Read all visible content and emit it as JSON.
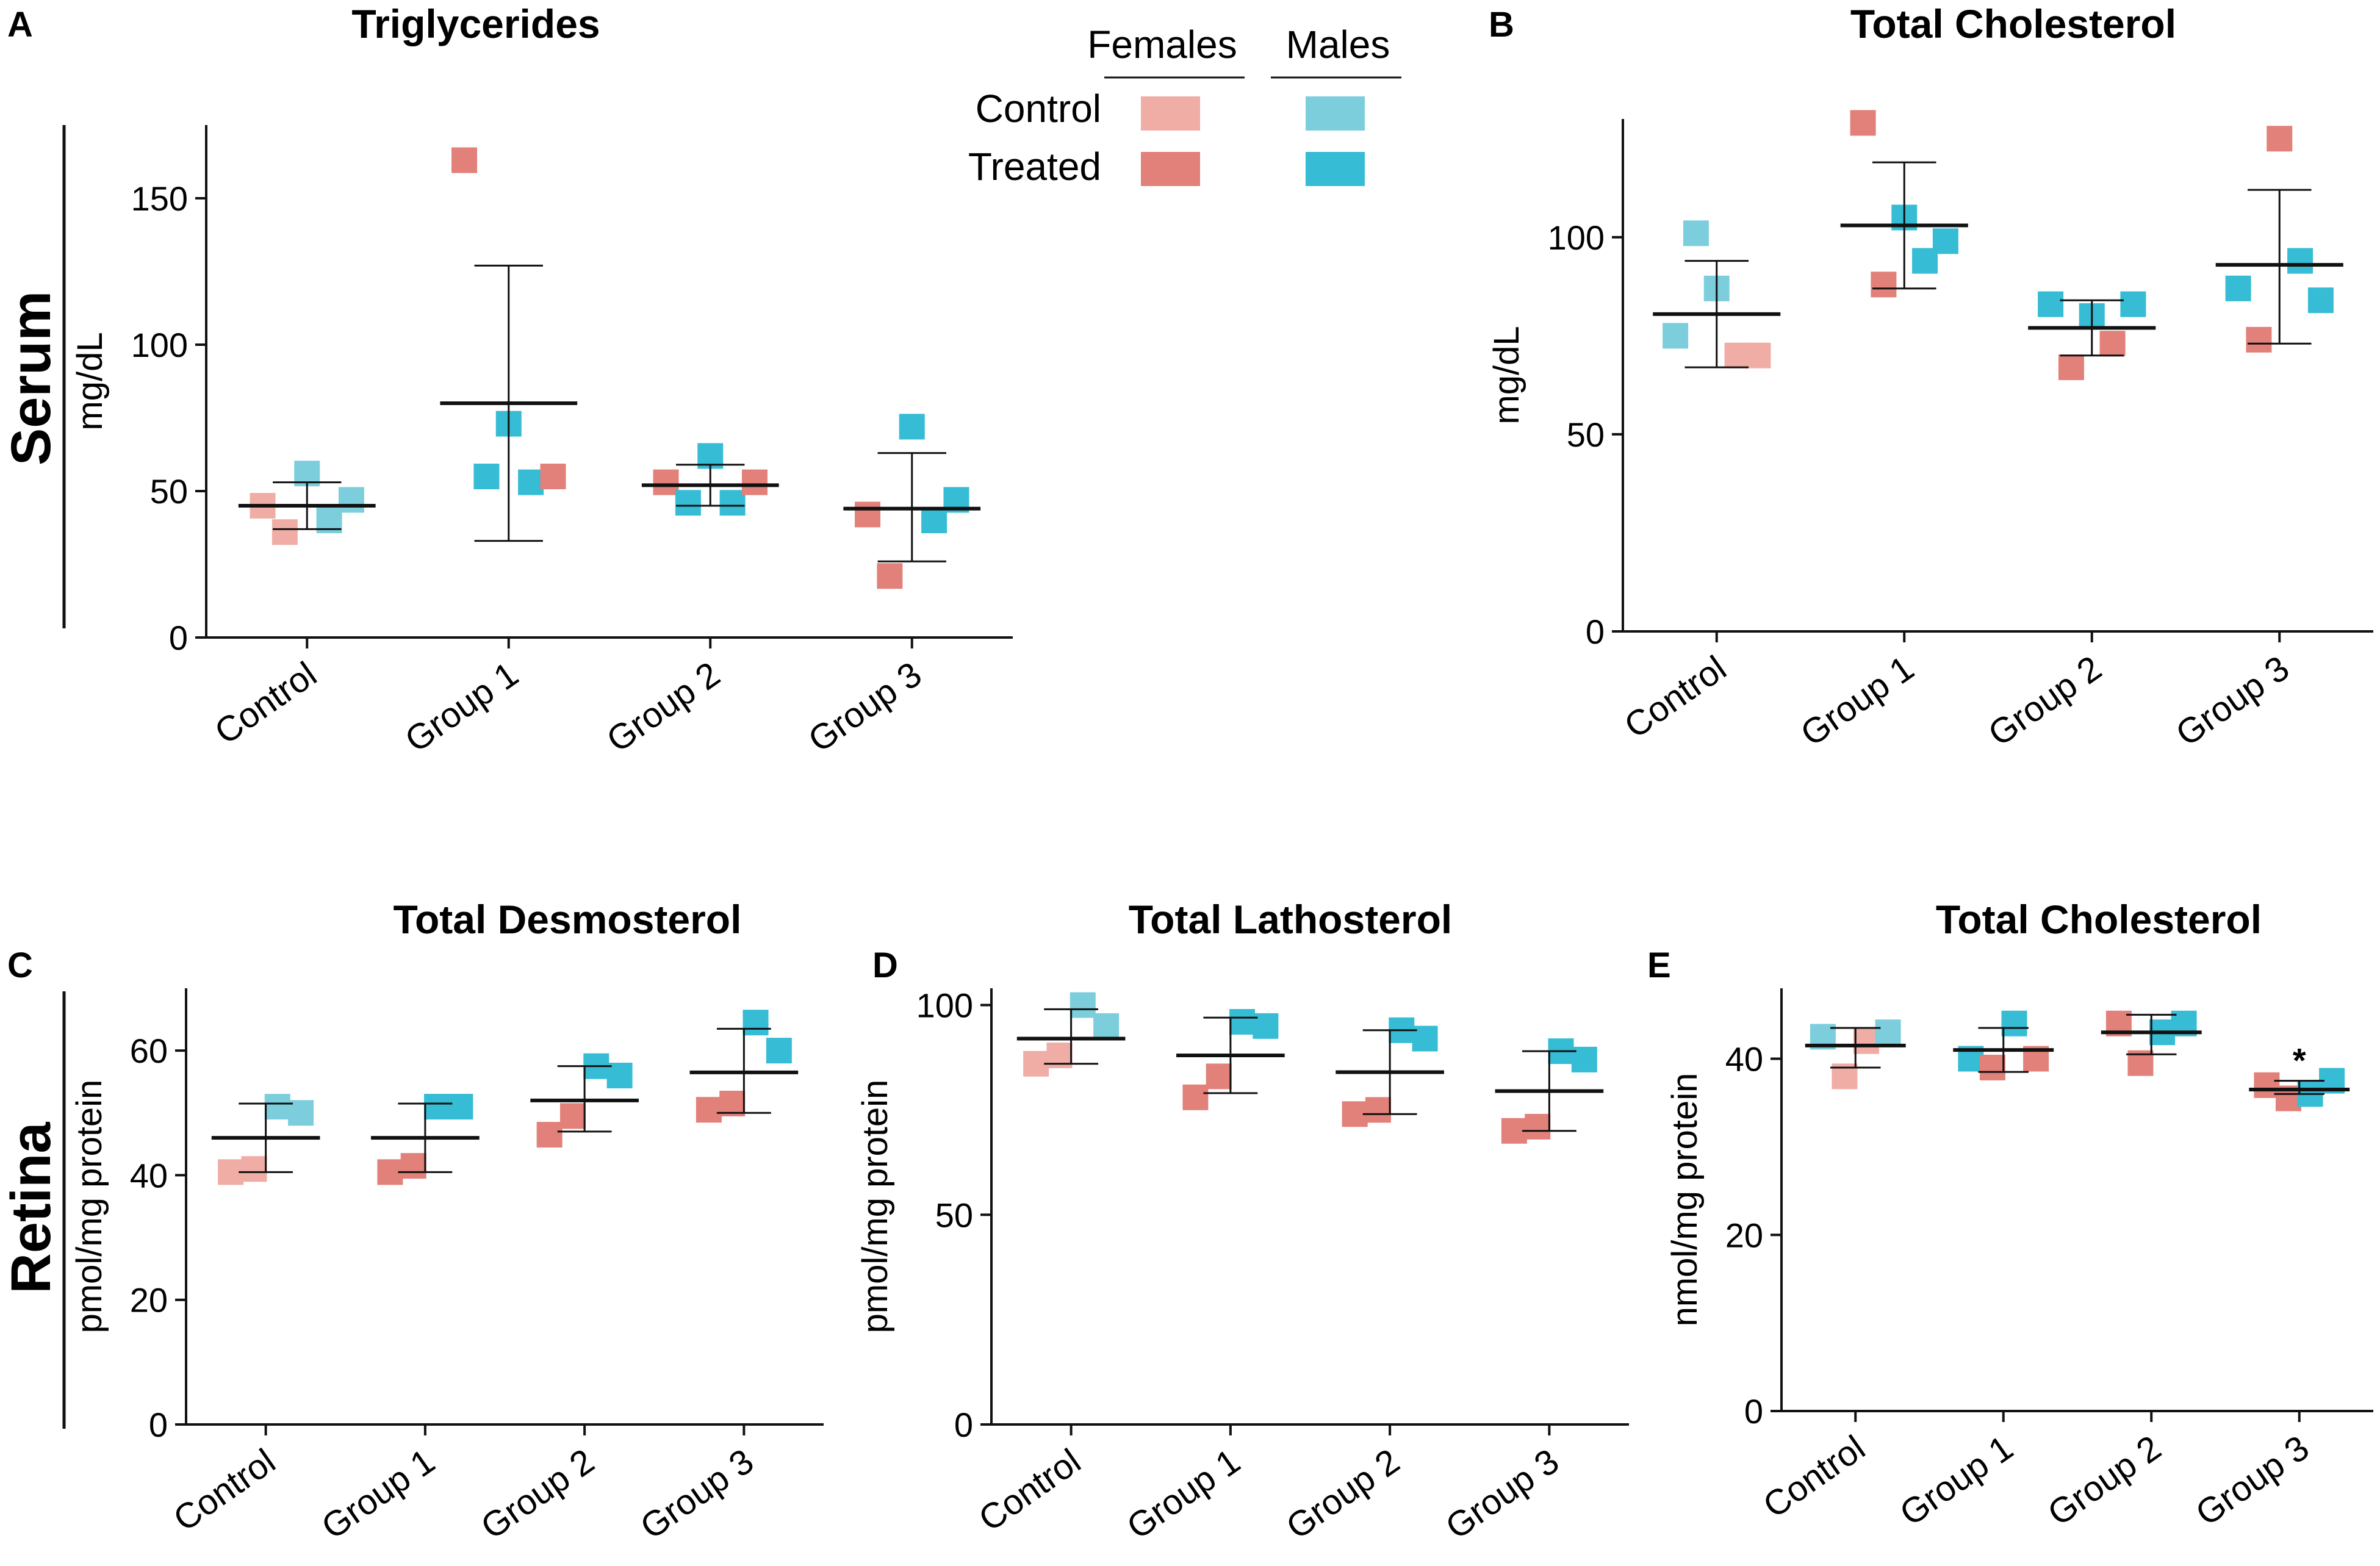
{
  "figure": {
    "row_labels": [
      "Serum",
      "Retina"
    ],
    "legend": {
      "col_headers": [
        "Females",
        "Males"
      ],
      "row_labels": [
        "Control",
        "Treated"
      ],
      "colors": {
        "female_control": "#EFADA6",
        "female_treated": "#E2807A",
        "male_control": "#7CCEDD",
        "male_treated": "#36BCD4"
      }
    }
  },
  "chart_data": [
    {
      "id": "A",
      "panel_letter": "A",
      "type": "scatter",
      "title": "Triglycerides",
      "ylabel": "mg/dL",
      "categories": [
        "Control",
        "Group 1",
        "Group 2",
        "Group 3"
      ],
      "ylim": [
        0,
        175
      ],
      "yticks": [
        0,
        50,
        100,
        150
      ],
      "groups": [
        {
          "category": "Control",
          "mean": 45,
          "sd_low": 37,
          "sd_high": 53,
          "points": [
            {
              "sex": "female",
              "status": "control",
              "y": 45
            },
            {
              "sex": "female",
              "status": "control",
              "y": 36
            },
            {
              "sex": "male",
              "status": "control",
              "y": 56
            },
            {
              "sex": "male",
              "status": "control",
              "y": 40
            },
            {
              "sex": "male",
              "status": "control",
              "y": 47
            }
          ]
        },
        {
          "category": "Group 1",
          "mean": 80,
          "sd_low": 33,
          "sd_high": 127,
          "points": [
            {
              "sex": "female",
              "status": "treated",
              "y": 163
            },
            {
              "sex": "male",
              "status": "treated",
              "y": 55
            },
            {
              "sex": "male",
              "status": "treated",
              "y": 73
            },
            {
              "sex": "male",
              "status": "treated",
              "y": 53
            },
            {
              "sex": "female",
              "status": "treated",
              "y": 55
            }
          ]
        },
        {
          "category": "Group 2",
          "mean": 52,
          "sd_low": 45,
          "sd_high": 59,
          "points": [
            {
              "sex": "female",
              "status": "treated",
              "y": 53
            },
            {
              "sex": "male",
              "status": "treated",
              "y": 46
            },
            {
              "sex": "male",
              "status": "treated",
              "y": 62
            },
            {
              "sex": "male",
              "status": "treated",
              "y": 46
            },
            {
              "sex": "female",
              "status": "treated",
              "y": 53
            }
          ]
        },
        {
          "category": "Group 3",
          "mean": 44,
          "sd_low": 26,
          "sd_high": 63,
          "points": [
            {
              "sex": "female",
              "status": "treated",
              "y": 42
            },
            {
              "sex": "female",
              "status": "treated",
              "y": 21
            },
            {
              "sex": "male",
              "status": "treated",
              "y": 72
            },
            {
              "sex": "male",
              "status": "treated",
              "y": 40
            },
            {
              "sex": "male",
              "status": "treated",
              "y": 47
            }
          ]
        }
      ]
    },
    {
      "id": "B",
      "panel_letter": "B",
      "type": "scatter",
      "title": "Total Cholesterol",
      "ylabel": "mg/dL",
      "categories": [
        "Control",
        "Group 1",
        "Group 2",
        "Group 3"
      ],
      "ylim": [
        0,
        130
      ],
      "yticks": [
        0,
        50,
        100
      ],
      "groups": [
        {
          "category": "Control",
          "mean": 80.5,
          "sd_low": 67,
          "sd_high": 94,
          "points": [
            {
              "sex": "male",
              "status": "control",
              "y": 75
            },
            {
              "sex": "male",
              "status": "control",
              "y": 101
            },
            {
              "sex": "male",
              "status": "control",
              "y": 87
            },
            {
              "sex": "female",
              "status": "control",
              "y": 70
            },
            {
              "sex": "female",
              "status": "control",
              "y": 70
            }
          ]
        },
        {
          "category": "Group 1",
          "mean": 103,
          "sd_low": 87,
          "sd_high": 119,
          "points": [
            {
              "sex": "female",
              "status": "treated",
              "y": 129
            },
            {
              "sex": "female",
              "status": "treated",
              "y": 88
            },
            {
              "sex": "male",
              "status": "treated",
              "y": 105
            },
            {
              "sex": "male",
              "status": "treated",
              "y": 94
            },
            {
              "sex": "male",
              "status": "treated",
              "y": 99
            }
          ]
        },
        {
          "category": "Group 2",
          "mean": 77,
          "sd_low": 70,
          "sd_high": 84,
          "points": [
            {
              "sex": "male",
              "status": "treated",
              "y": 83
            },
            {
              "sex": "female",
              "status": "treated",
              "y": 67
            },
            {
              "sex": "male",
              "status": "treated",
              "y": 80
            },
            {
              "sex": "female",
              "status": "treated",
              "y": 73
            },
            {
              "sex": "male",
              "status": "treated",
              "y": 83
            }
          ]
        },
        {
          "category": "Group 3",
          "mean": 93,
          "sd_low": 73,
          "sd_high": 112,
          "points": [
            {
              "sex": "male",
              "status": "treated",
              "y": 87
            },
            {
              "sex": "female",
              "status": "treated",
              "y": 74
            },
            {
              "sex": "female",
              "status": "treated",
              "y": 125
            },
            {
              "sex": "male",
              "status": "treated",
              "y": 94
            },
            {
              "sex": "male",
              "status": "treated",
              "y": 84
            }
          ]
        }
      ]
    },
    {
      "id": "C",
      "panel_letter": "C",
      "type": "scatter",
      "title": "Total Desmosterol",
      "ylabel": "pmol/mg protein",
      "categories": [
        "Control",
        "Group 1",
        "Group 2",
        "Group 3"
      ],
      "ylim": [
        0,
        70
      ],
      "yticks": [
        0,
        20,
        40,
        60
      ],
      "groups": [
        {
          "category": "Control",
          "mean": 46,
          "sd_low": 40.5,
          "sd_high": 51.5,
          "points": [
            {
              "sex": "female",
              "status": "control",
              "y": 40.5
            },
            {
              "sex": "female",
              "status": "control",
              "y": 41
            },
            {
              "sex": "male",
              "status": "control",
              "y": 51
            },
            {
              "sex": "male",
              "status": "control",
              "y": 50
            }
          ]
        },
        {
          "category": "Group 1",
          "mean": 46,
          "sd_low": 40.5,
          "sd_high": 51.5,
          "points": [
            {
              "sex": "female",
              "status": "treated",
              "y": 40.5
            },
            {
              "sex": "female",
              "status": "treated",
              "y": 41.5
            },
            {
              "sex": "male",
              "status": "treated",
              "y": 51
            },
            {
              "sex": "male",
              "status": "treated",
              "y": 51
            }
          ]
        },
        {
          "category": "Group 2",
          "mean": 52,
          "sd_low": 47,
          "sd_high": 57.5,
          "points": [
            {
              "sex": "female",
              "status": "treated",
              "y": 46.5
            },
            {
              "sex": "female",
              "status": "treated",
              "y": 49.5
            },
            {
              "sex": "male",
              "status": "treated",
              "y": 57.5
            },
            {
              "sex": "male",
              "status": "treated",
              "y": 56
            }
          ]
        },
        {
          "category": "Group 3",
          "mean": 56.5,
          "sd_low": 50,
          "sd_high": 63.5,
          "points": [
            {
              "sex": "female",
              "status": "treated",
              "y": 50.5
            },
            {
              "sex": "female",
              "status": "treated",
              "y": 51.5
            },
            {
              "sex": "male",
              "status": "treated",
              "y": 64.5
            },
            {
              "sex": "male",
              "status": "treated",
              "y": 60
            }
          ]
        }
      ]
    },
    {
      "id": "D",
      "panel_letter": "D",
      "type": "scatter",
      "title": "Total Lathosterol",
      "ylabel": "pmol/mg protein",
      "categories": [
        "Control",
        "Group 1",
        "Group 2",
        "Group 3"
      ],
      "ylim": [
        0,
        104
      ],
      "yticks": [
        0,
        50,
        100
      ],
      "groups": [
        {
          "category": "Control",
          "mean": 92,
          "sd_low": 86,
          "sd_high": 99,
          "points": [
            {
              "sex": "female",
              "status": "control",
              "y": 86
            },
            {
              "sex": "female",
              "status": "control",
              "y": 88
            },
            {
              "sex": "male",
              "status": "control",
              "y": 100
            },
            {
              "sex": "male",
              "status": "control",
              "y": 95
            }
          ]
        },
        {
          "category": "Group 1",
          "mean": 88,
          "sd_low": 79,
          "sd_high": 97,
          "points": [
            {
              "sex": "female",
              "status": "treated",
              "y": 78
            },
            {
              "sex": "female",
              "status": "treated",
              "y": 83
            },
            {
              "sex": "male",
              "status": "treated",
              "y": 96
            },
            {
              "sex": "male",
              "status": "treated",
              "y": 95
            }
          ]
        },
        {
          "category": "Group 2",
          "mean": 84,
          "sd_low": 74,
          "sd_high": 94,
          "points": [
            {
              "sex": "female",
              "status": "treated",
              "y": 74
            },
            {
              "sex": "female",
              "status": "treated",
              "y": 75
            },
            {
              "sex": "male",
              "status": "treated",
              "y": 94
            },
            {
              "sex": "male",
              "status": "treated",
              "y": 92
            }
          ]
        },
        {
          "category": "Group 3",
          "mean": 79.5,
          "sd_low": 70,
          "sd_high": 89,
          "points": [
            {
              "sex": "female",
              "status": "treated",
              "y": 70
            },
            {
              "sex": "female",
              "status": "treated",
              "y": 71
            },
            {
              "sex": "male",
              "status": "treated",
              "y": 89
            },
            {
              "sex": "male",
              "status": "treated",
              "y": 87
            }
          ]
        }
      ]
    },
    {
      "id": "E",
      "panel_letter": "E",
      "type": "scatter",
      "title": "Total Cholesterol",
      "ylabel": "nmol/mg protein",
      "categories": [
        "Control",
        "Group 1",
        "Group 2",
        "Group 3"
      ],
      "ylim": [
        0,
        48
      ],
      "yticks": [
        0,
        20,
        40
      ],
      "groups": [
        {
          "category": "Control",
          "mean": 41.5,
          "sd_low": 39,
          "sd_high": 43.5,
          "points": [
            {
              "sex": "male",
              "status": "control",
              "y": 42.5
            },
            {
              "sex": "female",
              "status": "control",
              "y": 38
            },
            {
              "sex": "female",
              "status": "control",
              "y": 42
            },
            {
              "sex": "male",
              "status": "control",
              "y": 43
            }
          ]
        },
        {
          "category": "Group 1",
          "mean": 41,
          "sd_low": 38.5,
          "sd_high": 43.5,
          "points": [
            {
              "sex": "male",
              "status": "treated",
              "y": 40
            },
            {
              "sex": "female",
              "status": "treated",
              "y": 39
            },
            {
              "sex": "male",
              "status": "treated",
              "y": 44
            },
            {
              "sex": "female",
              "status": "treated",
              "y": 40
            }
          ]
        },
        {
          "category": "Group 2",
          "mean": 43,
          "sd_low": 40.5,
          "sd_high": 45,
          "points": [
            {
              "sex": "female",
              "status": "treated",
              "y": 44
            },
            {
              "sex": "female",
              "status": "treated",
              "y": 39.5
            },
            {
              "sex": "male",
              "status": "treated",
              "y": 43
            },
            {
              "sex": "male",
              "status": "treated",
              "y": 44
            }
          ]
        },
        {
          "category": "Group 3",
          "mean": 36.5,
          "sd_low": 36,
          "sd_high": 37.5,
          "annotation": "*",
          "points": [
            {
              "sex": "female",
              "status": "treated",
              "y": 37
            },
            {
              "sex": "female",
              "status": "treated",
              "y": 35.5
            },
            {
              "sex": "male",
              "status": "treated",
              "y": 36
            },
            {
              "sex": "male",
              "status": "treated",
              "y": 37.5
            }
          ]
        }
      ]
    }
  ]
}
